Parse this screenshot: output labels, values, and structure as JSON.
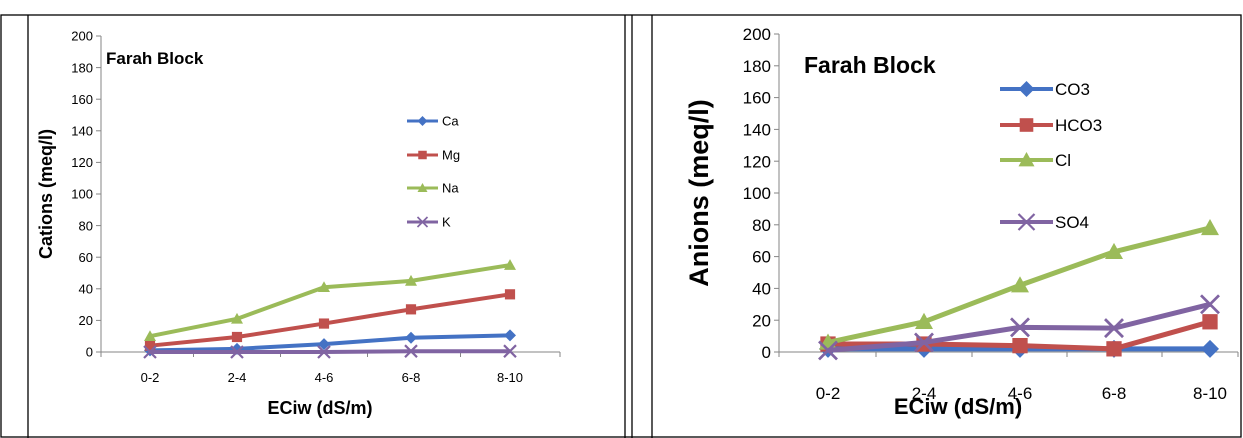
{
  "chart_data": [
    {
      "type": "line",
      "annotation": "Farah Block",
      "xlabel": "ECiw (dS/m)",
      "ylabel": "Cations (meq/l)",
      "categories": [
        "0-2",
        "2-4",
        "4-6",
        "6-8",
        "8-10"
      ],
      "ylim": [
        0,
        200
      ],
      "yticks": [
        0,
        20,
        40,
        60,
        80,
        100,
        120,
        140,
        160,
        180,
        200
      ],
      "grid": false,
      "legend_position": "right",
      "series": [
        {
          "name": "Ca",
          "values": [
            1,
            2,
            5,
            9,
            10.5
          ],
          "color": "#4472c4",
          "marker": "diamond"
        },
        {
          "name": "Mg",
          "values": [
            4,
            9.5,
            18,
            27,
            36.5
          ],
          "color": "#c0504d",
          "marker": "square"
        },
        {
          "name": "Na",
          "values": [
            10,
            21,
            41,
            45,
            55
          ],
          "color": "#9bbb59",
          "marker": "triangle"
        },
        {
          "name": "K",
          "values": [
            0,
            0,
            0,
            0.5,
            0.5
          ],
          "color": "#8064a2",
          "marker": "x"
        }
      ]
    },
    {
      "type": "line",
      "annotation": "Farah Block",
      "xlabel": "ECiw (dS/m)",
      "ylabel": "Anions (meq/l)",
      "categories": [
        "0-2",
        "2-4",
        "4-6",
        "6-8",
        "8-10"
      ],
      "ylim": [
        0,
        200
      ],
      "yticks": [
        0,
        20,
        40,
        60,
        80,
        100,
        120,
        140,
        160,
        180,
        200
      ],
      "grid": false,
      "legend_position": "right",
      "series": [
        {
          "name": "CO3",
          "values": [
            2,
            2,
            2,
            2,
            2
          ],
          "color": "#4472c4",
          "marker": "diamond"
        },
        {
          "name": "HCO3",
          "values": [
            5,
            5,
            4,
            2,
            19
          ],
          "color": "#c0504d",
          "marker": "square"
        },
        {
          "name": "Cl",
          "values": [
            6,
            19,
            42,
            63,
            78
          ],
          "color": "#9bbb59",
          "marker": "triangle"
        },
        {
          "name": "SO4",
          "values": [
            1,
            6,
            15.5,
            15,
            30
          ],
          "color": "#8064a2",
          "marker": "x"
        }
      ]
    }
  ]
}
